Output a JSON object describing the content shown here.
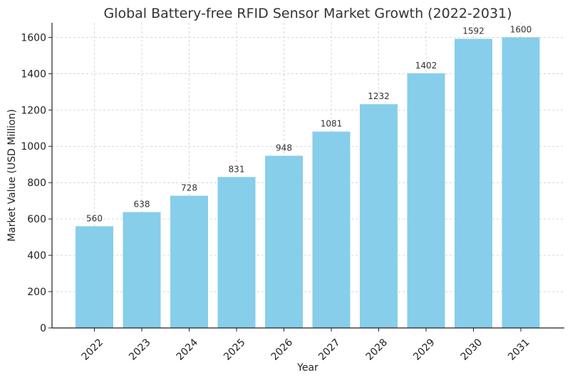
{
  "chart_data": {
    "type": "bar",
    "title": "Global Battery-free RFID Sensor Market Growth (2022-2031)",
    "xlabel": "Year",
    "ylabel": "Market Value (USD Million)",
    "categories": [
      "2022",
      "2023",
      "2024",
      "2025",
      "2026",
      "2027",
      "2028",
      "2029",
      "2030",
      "2031"
    ],
    "values": [
      560,
      638,
      728,
      831,
      948,
      1081,
      1232,
      1402,
      1592,
      1600
    ],
    "data_labels": [
      "560",
      "638",
      "728",
      "831",
      "948",
      "1081",
      "1232",
      "1402",
      "1592",
      "1600"
    ],
    "yticks": [
      0,
      200,
      400,
      600,
      800,
      1000,
      1200,
      1400,
      1600
    ],
    "ylim": [
      0,
      1680
    ],
    "grid": true,
    "bar_color": "#87CEEB"
  }
}
